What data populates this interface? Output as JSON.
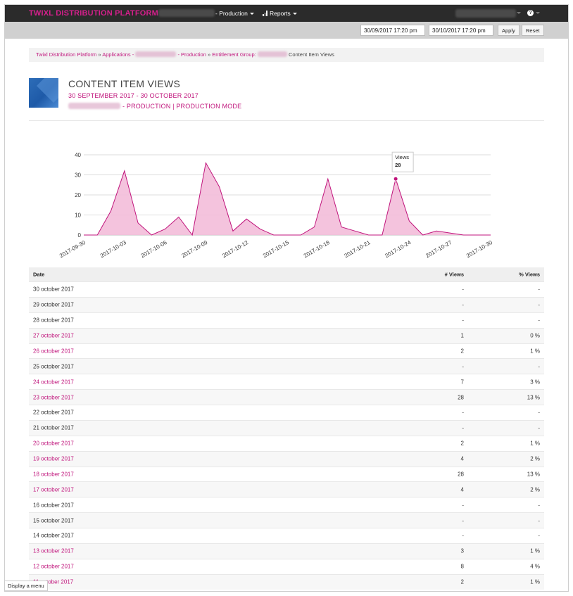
{
  "nav": {
    "brand": "TWIXL DISTRIBUTION PLATFORM",
    "production_label": "- Production",
    "reports_label": "Reports"
  },
  "toolbar": {
    "start_date": "30/09/2017 17:20 pm",
    "end_date": "30/10/2017 17:20 pm",
    "apply_label": "Apply",
    "reset_label": "Reset"
  },
  "breadcrumb": {
    "items": [
      "Twixl Distribution Platform",
      "Applications",
      "- Production",
      "Entitlement Group:"
    ],
    "separator": "»",
    "current": "Content Item Views"
  },
  "header": {
    "title": "CONTENT ITEM VIEWS",
    "date_range": "30 SEPTEMBER 2017 - 30 OCTOBER 2017",
    "app_line": "- PRODUCTION | PRODUCTION MODE"
  },
  "chart_data": {
    "type": "area",
    "x": [
      "2017-09-30",
      "2017-10-01",
      "2017-10-02",
      "2017-10-03",
      "2017-10-04",
      "2017-10-05",
      "2017-10-06",
      "2017-10-07",
      "2017-10-08",
      "2017-10-09",
      "2017-10-10",
      "2017-10-11",
      "2017-10-12",
      "2017-10-13",
      "2017-10-14",
      "2017-10-15",
      "2017-10-16",
      "2017-10-17",
      "2017-10-18",
      "2017-10-19",
      "2017-10-20",
      "2017-10-21",
      "2017-10-22",
      "2017-10-23",
      "2017-10-24",
      "2017-10-25",
      "2017-10-26",
      "2017-10-27",
      "2017-10-28",
      "2017-10-29",
      "2017-10-30"
    ],
    "series": [
      {
        "values": [
          0,
          0,
          12,
          32,
          6,
          0,
          3,
          9,
          0,
          36,
          24,
          2,
          8,
          3,
          0,
          0,
          0,
          4,
          28,
          4,
          2,
          0,
          0,
          28,
          7,
          0,
          2,
          1,
          0,
          0,
          0
        ]
      }
    ],
    "x_tick_labels": [
      "2017-09-30",
      "2017-10-03",
      "2017-10-06",
      "2017-10-09",
      "2017-10-12",
      "2017-10-15",
      "2017-10-18",
      "2017-10-21",
      "2017-10-24",
      "2017-10-27",
      "2017-10-30"
    ],
    "y_ticks": [
      0,
      10,
      20,
      30,
      40
    ],
    "ylim": [
      0,
      40
    ],
    "grid": true,
    "tooltip": {
      "label": "Views",
      "value": "28",
      "x": "2017-10-23"
    },
    "color": "#c0157c",
    "fill": "#f3bcd9"
  },
  "table": {
    "headers": {
      "date": "Date",
      "views": "# Views",
      "pct": "% Views"
    },
    "rows": [
      {
        "date": "30 october 2017",
        "views": "-",
        "pct": "-",
        "link": false
      },
      {
        "date": "29 october 2017",
        "views": "-",
        "pct": "-",
        "link": false
      },
      {
        "date": "28 october 2017",
        "views": "-",
        "pct": "-",
        "link": false
      },
      {
        "date": "27 october 2017",
        "views": "1",
        "pct": "0 %",
        "link": true
      },
      {
        "date": "26 october 2017",
        "views": "2",
        "pct": "1 %",
        "link": true
      },
      {
        "date": "25 october 2017",
        "views": "-",
        "pct": "-",
        "link": false
      },
      {
        "date": "24 october 2017",
        "views": "7",
        "pct": "3 %",
        "link": true
      },
      {
        "date": "23 october 2017",
        "views": "28",
        "pct": "13 %",
        "link": true
      },
      {
        "date": "22 october 2017",
        "views": "-",
        "pct": "-",
        "link": false
      },
      {
        "date": "21 october 2017",
        "views": "-",
        "pct": "-",
        "link": false
      },
      {
        "date": "20 october 2017",
        "views": "2",
        "pct": "1 %",
        "link": true
      },
      {
        "date": "19 october 2017",
        "views": "4",
        "pct": "2 %",
        "link": true
      },
      {
        "date": "18 october 2017",
        "views": "28",
        "pct": "13 %",
        "link": true
      },
      {
        "date": "17 october 2017",
        "views": "4",
        "pct": "2 %",
        "link": true
      },
      {
        "date": "16 october 2017",
        "views": "-",
        "pct": "-",
        "link": false
      },
      {
        "date": "15 october 2017",
        "views": "-",
        "pct": "-",
        "link": false
      },
      {
        "date": "14 october 2017",
        "views": "-",
        "pct": "-",
        "link": false
      },
      {
        "date": "13 october 2017",
        "views": "3",
        "pct": "1 %",
        "link": true
      },
      {
        "date": "12 october 2017",
        "views": "8",
        "pct": "4 %",
        "link": true
      },
      {
        "date": "11 october 2017",
        "views": "2",
        "pct": "1 %",
        "link": true
      }
    ]
  },
  "tooltip_menu": "Display a menu",
  "colors": {
    "accent": "#c0157c",
    "nav_bg": "#2b2b2b",
    "toolbar_bg": "#d0d0d0"
  }
}
